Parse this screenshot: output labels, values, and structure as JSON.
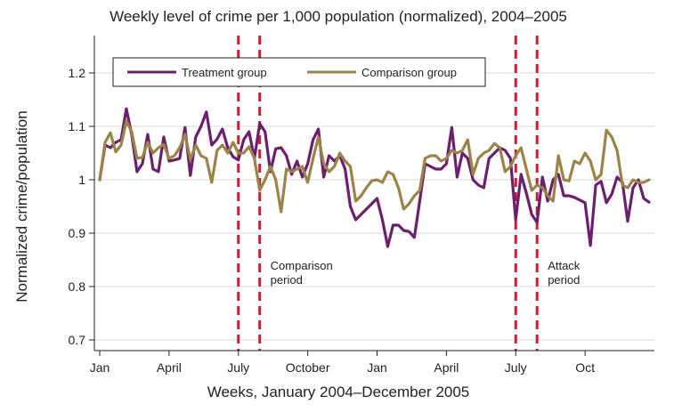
{
  "chart_data": {
    "type": "line",
    "title": "Weekly level of crime per 1,000 population (normalized), 2004–2005",
    "xlabel": "Weeks, January 2004–December 2005",
    "ylabel": "Normalized crime/population",
    "x_tick_labels": [
      "Jan",
      "April",
      "July",
      "October",
      "Jan",
      "April",
      "July",
      "Oct"
    ],
    "x_tick_weeks": [
      1,
      14,
      27,
      40,
      53,
      66,
      79,
      92
    ],
    "x_range": [
      0,
      105
    ],
    "ylim": [
      0.68,
      1.27
    ],
    "y_ticks": [
      "0.7",
      "0.8",
      "0.9",
      "1",
      "1.1",
      "1.2"
    ],
    "grid": "horizontal",
    "legend_position": "top-left",
    "series": [
      {
        "name": "Treatment group",
        "color": "#6b1f6e",
        "x": [
          1,
          2,
          3,
          4,
          5,
          6,
          7,
          8,
          9,
          10,
          11,
          12,
          13,
          14,
          15,
          16,
          17,
          18,
          19,
          20,
          21,
          22,
          23,
          24,
          25,
          26,
          27,
          28,
          29,
          30,
          31,
          32,
          33,
          34,
          35,
          36,
          37,
          38,
          39,
          40,
          41,
          42,
          43,
          44,
          45,
          46,
          47,
          48,
          49,
          50,
          51,
          52,
          53,
          54,
          55,
          56,
          57,
          58,
          59,
          60,
          61,
          62,
          63,
          64,
          65,
          66,
          67,
          68,
          69,
          70,
          71,
          72,
          73,
          74,
          75,
          76,
          77,
          78,
          79,
          80,
          81,
          82,
          83,
          84,
          85,
          86,
          87,
          88,
          89,
          90,
          91,
          92,
          93,
          94,
          95,
          96,
          97,
          98,
          99,
          100,
          101,
          102,
          103,
          104
        ],
        "values": [
          1.0,
          1.065,
          1.06,
          1.07,
          1.075,
          1.133,
          1.085,
          1.015,
          1.03,
          1.085,
          1.02,
          1.015,
          1.08,
          1.035,
          1.037,
          1.04,
          1.098,
          1.008,
          1.08,
          1.1,
          1.127,
          1.065,
          1.076,
          1.095,
          1.06,
          1.043,
          1.037,
          1.075,
          1.09,
          1.04,
          1.105,
          1.09,
          1.015,
          1.058,
          1.06,
          1.045,
          1.01,
          1.035,
          1.005,
          1.03,
          1.075,
          1.095,
          1.005,
          1.045,
          1.035,
          1.045,
          1.02,
          0.95,
          0.925,
          0.935,
          0.945,
          0.955,
          0.965,
          0.925,
          0.875,
          0.915,
          0.915,
          0.905,
          0.903,
          0.892,
          0.96,
          1.03,
          1.025,
          1.02,
          1.02,
          1.03,
          1.098,
          1.005,
          1.05,
          1.04,
          1.0,
          0.99,
          0.985,
          1.04,
          1.05,
          1.06,
          1.055,
          1.04,
          0.925,
          1.01,
          0.975,
          0.935,
          0.92,
          1.005,
          0.96,
          1.0,
          1.01,
          0.97,
          0.97,
          0.967,
          0.962,
          0.957,
          0.877,
          0.99,
          0.997,
          0.957,
          0.973,
          1.005,
          0.995,
          0.922,
          0.985,
          1.0,
          0.965,
          0.958
        ]
      },
      {
        "name": "Comparison group",
        "color": "#9c8448",
        "x": [
          1,
          2,
          3,
          4,
          5,
          6,
          7,
          8,
          9,
          10,
          11,
          12,
          13,
          14,
          15,
          16,
          17,
          18,
          19,
          20,
          21,
          22,
          23,
          24,
          25,
          26,
          27,
          28,
          29,
          30,
          31,
          32,
          33,
          34,
          35,
          36,
          37,
          38,
          39,
          40,
          41,
          42,
          43,
          44,
          45,
          46,
          47,
          48,
          49,
          50,
          51,
          52,
          53,
          54,
          55,
          56,
          57,
          58,
          59,
          60,
          61,
          62,
          63,
          64,
          65,
          66,
          67,
          68,
          69,
          70,
          71,
          72,
          73,
          74,
          75,
          76,
          77,
          78,
          79,
          80,
          81,
          82,
          83,
          84,
          85,
          86,
          87,
          88,
          89,
          90,
          91,
          92,
          93,
          94,
          95,
          96,
          97,
          98,
          99,
          100,
          101,
          102,
          103,
          104
        ],
        "values": [
          1.0,
          1.07,
          1.088,
          1.052,
          1.065,
          1.11,
          1.09,
          1.04,
          1.042,
          1.07,
          1.05,
          1.06,
          1.066,
          1.04,
          1.045,
          1.06,
          1.085,
          1.038,
          1.065,
          1.045,
          1.04,
          0.995,
          1.055,
          1.065,
          1.05,
          1.07,
          1.05,
          1.05,
          1.062,
          1.04,
          0.98,
          1.0,
          1.025,
          1.0,
          0.94,
          1.02,
          1.015,
          1.02,
          1.025,
          0.995,
          1.04,
          1.08,
          1.03,
          1.015,
          1.025,
          1.05,
          1.035,
          1.025,
          0.96,
          0.97,
          0.985,
          0.998,
          1.0,
          0.995,
          1.015,
          1.01,
          0.985,
          0.945,
          0.955,
          0.97,
          0.98,
          1.04,
          1.045,
          1.045,
          1.035,
          1.04,
          1.055,
          1.05,
          1.055,
          1.075,
          1.01,
          1.04,
          1.05,
          1.055,
          1.068,
          1.06,
          1.015,
          1.025,
          1.045,
          1.06,
          1.02,
          0.98,
          0.99,
          0.985,
          0.97,
          0.96,
          1.045,
          1.0,
          0.998,
          1.035,
          1.03,
          1.05,
          1.035,
          1.0,
          1.01,
          1.093,
          1.08,
          1.055,
          0.99,
          0.985,
          1.0,
          0.995,
          0.995,
          1.0
        ]
      }
    ],
    "markers": {
      "color": "#cc1f2e",
      "weeks": [
        27,
        31,
        79,
        83
      ]
    },
    "annotations": [
      {
        "lines": [
          "Comparison",
          "period"
        ],
        "week": 33,
        "y": 0.832
      },
      {
        "lines": [
          "Attack",
          "period"
        ],
        "week": 85,
        "y": 0.832
      }
    ]
  }
}
